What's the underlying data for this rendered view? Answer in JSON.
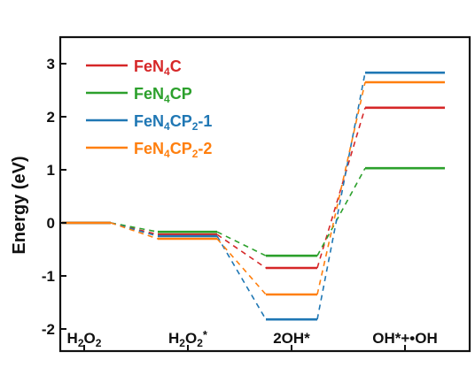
{
  "chart_data": {
    "type": "line",
    "ylabel": "Energy (eV)",
    "xlabel": "",
    "ylim": [
      -2.1,
      3.5
    ],
    "yticks": [
      -2,
      -1,
      0,
      1,
      2,
      3
    ],
    "ytick_labels": [
      "-2",
      "-1",
      "0",
      "1",
      "2",
      "3"
    ],
    "categories": [
      {
        "label": "H2O2",
        "parts": [
          [
            "H",
            ""
          ],
          [
            "2",
            "sub"
          ],
          [
            "O",
            ""
          ],
          [
            "2",
            "sub"
          ]
        ]
      },
      {
        "label": "H2O2*",
        "parts": [
          [
            "H",
            ""
          ],
          [
            "2",
            "sub"
          ],
          [
            "O",
            ""
          ],
          [
            "2",
            "sub"
          ],
          [
            "*",
            "sup"
          ]
        ]
      },
      {
        "label": "2OH*",
        "parts": [
          [
            "2OH*",
            ""
          ]
        ]
      },
      {
        "label": "OH*+•OH",
        "parts": [
          [
            "OH*+•OH",
            ""
          ]
        ]
      }
    ],
    "legend_position": "top-left",
    "grid": false,
    "series": [
      {
        "name": "FeN4C",
        "name_parts": [
          [
            "FeN",
            ""
          ],
          [
            "4",
            "sub"
          ],
          [
            "C",
            ""
          ]
        ],
        "color": "#d62728",
        "values": [
          0,
          -0.22,
          -0.85,
          2.17
        ]
      },
      {
        "name": "FeN4CP",
        "name_parts": [
          [
            "FeN",
            ""
          ],
          [
            "4",
            "sub"
          ],
          [
            "CP",
            ""
          ]
        ],
        "color": "#2ca02c",
        "values": [
          0,
          -0.17,
          -0.62,
          1.03
        ]
      },
      {
        "name": "FeN4CP2-1",
        "name_parts": [
          [
            "FeN",
            ""
          ],
          [
            "4",
            "sub"
          ],
          [
            "CP",
            ""
          ],
          [
            "2",
            "sub"
          ],
          [
            "-1",
            ""
          ]
        ],
        "color": "#1f77b4",
        "values": [
          0,
          -0.25,
          -1.82,
          2.83
        ]
      },
      {
        "name": "FeN4CP2-2",
        "name_parts": [
          [
            "FeN",
            ""
          ],
          [
            "4",
            "sub"
          ],
          [
            "CP",
            ""
          ],
          [
            "2",
            "sub"
          ],
          [
            "-2",
            ""
          ]
        ],
        "color": "#ff7f0e",
        "values": [
          0,
          -0.3,
          -1.35,
          2.65
        ]
      }
    ]
  }
}
